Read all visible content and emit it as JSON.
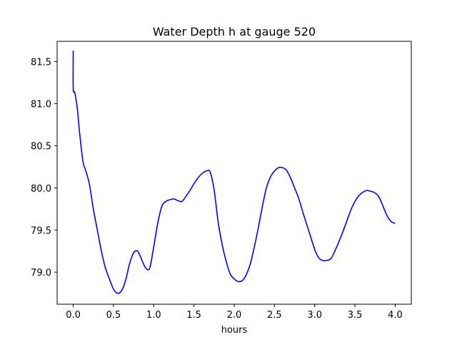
{
  "chart_data": {
    "type": "line",
    "title": "Water Depth h at gauge 520",
    "xlabel": "hours",
    "ylabel": "",
    "xlim": [
      -0.2,
      4.2
    ],
    "ylim": [
      78.62,
      81.74
    ],
    "grid": false,
    "xticks": [
      0.0,
      0.5,
      1.0,
      1.5,
      2.0,
      2.5,
      3.0,
      3.5,
      4.0
    ],
    "xtick_labels": [
      "0.0",
      "0.5",
      "1.0",
      "1.5",
      "2.0",
      "2.5",
      "3.0",
      "3.5",
      "4.0"
    ],
    "yticks": [
      79.0,
      79.5,
      80.0,
      80.5,
      81.0,
      81.5
    ],
    "ytick_labels": [
      "79.0",
      "79.5",
      "80.0",
      "80.5",
      "81.0",
      "81.5"
    ],
    "series": [
      {
        "color": "#0000ff",
        "x": [
          0.0,
          0.0,
          0.02,
          0.05,
          0.08,
          0.12,
          0.15,
          0.2,
          0.25,
          0.3,
          0.35,
          0.4,
          0.45,
          0.5,
          0.55,
          0.6,
          0.65,
          0.7,
          0.75,
          0.8,
          0.85,
          0.9,
          0.95,
          1.0,
          1.05,
          1.1,
          1.15,
          1.2,
          1.25,
          1.3,
          1.35,
          1.4,
          1.45,
          1.5,
          1.55,
          1.6,
          1.65,
          1.7,
          1.75,
          1.8,
          1.85,
          1.9,
          1.95,
          2.0,
          2.05,
          2.1,
          2.15,
          2.2,
          2.25,
          2.3,
          2.35,
          2.4,
          2.45,
          2.5,
          2.55,
          2.6,
          2.65,
          2.7,
          2.75,
          2.8,
          2.85,
          2.9,
          2.95,
          3.0,
          3.05,
          3.1,
          3.15,
          3.2,
          3.25,
          3.3,
          3.35,
          3.4,
          3.45,
          3.5,
          3.55,
          3.6,
          3.65,
          3.7,
          3.75,
          3.8,
          3.85,
          3.9,
          3.95,
          4.0
        ],
        "y": [
          81.63,
          81.18,
          81.13,
          80.95,
          80.65,
          80.32,
          80.22,
          80.05,
          79.75,
          79.5,
          79.25,
          79.05,
          78.92,
          78.8,
          78.75,
          78.78,
          78.9,
          79.1,
          79.23,
          79.25,
          79.15,
          79.05,
          79.05,
          79.3,
          79.58,
          79.78,
          79.84,
          79.86,
          79.87,
          79.85,
          79.84,
          79.9,
          79.97,
          80.05,
          80.12,
          80.17,
          80.2,
          80.19,
          79.98,
          79.6,
          79.33,
          79.13,
          78.98,
          78.92,
          78.89,
          78.9,
          78.97,
          79.1,
          79.3,
          79.53,
          79.78,
          80.0,
          80.13,
          80.2,
          80.24,
          80.24,
          80.21,
          80.12,
          80.0,
          79.88,
          79.72,
          79.57,
          79.42,
          79.27,
          79.17,
          79.14,
          79.14,
          79.16,
          79.25,
          79.36,
          79.48,
          79.61,
          79.74,
          79.84,
          79.91,
          79.95,
          79.97,
          79.96,
          79.94,
          79.89,
          79.78,
          79.67,
          79.6,
          79.58
        ]
      }
    ]
  }
}
